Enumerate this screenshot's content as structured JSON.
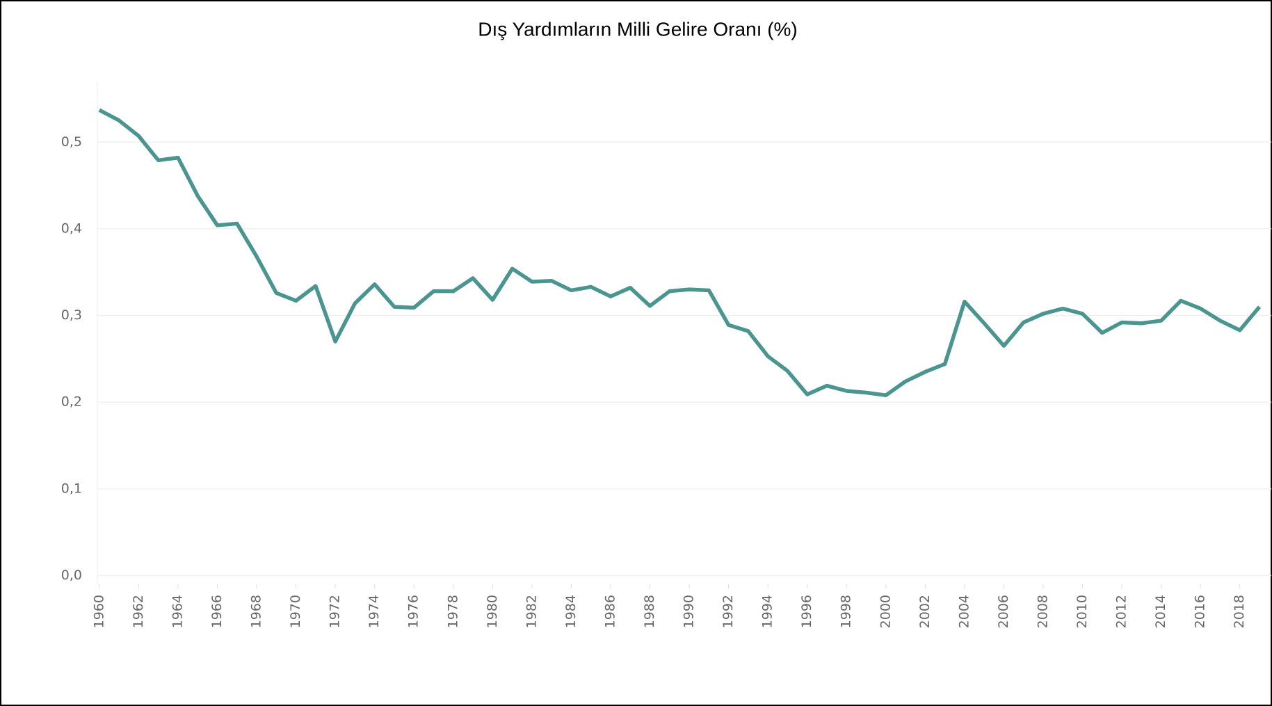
{
  "chart_data": {
    "type": "line",
    "title": "Dış Yardımların Milli Gelire Oranı (%)",
    "x": [
      1960,
      1961,
      1962,
      1963,
      1964,
      1965,
      1966,
      1967,
      1968,
      1969,
      1970,
      1971,
      1972,
      1973,
      1974,
      1975,
      1976,
      1977,
      1978,
      1979,
      1980,
      1981,
      1982,
      1983,
      1984,
      1985,
      1986,
      1987,
      1988,
      1989,
      1990,
      1991,
      1992,
      1993,
      1994,
      1995,
      1996,
      1997,
      1998,
      1999,
      2000,
      2001,
      2002,
      2003,
      2004,
      2005,
      2006,
      2007,
      2008,
      2009,
      2010,
      2011,
      2012,
      2013,
      2014,
      2015,
      2016,
      2017,
      2018,
      2019
    ],
    "series": [
      {
        "name": "Dış Yardımların Milli Gelire Oranı (%)",
        "color": "#4a958f",
        "values": [
          0.537,
          0.525,
          0.507,
          0.479,
          0.482,
          0.438,
          0.404,
          0.406,
          0.368,
          0.326,
          0.317,
          0.334,
          0.27,
          0.314,
          0.336,
          0.31,
          0.309,
          0.328,
          0.328,
          0.343,
          0.318,
          0.354,
          0.339,
          0.34,
          0.329,
          0.333,
          0.322,
          0.332,
          0.311,
          0.328,
          0.33,
          0.329,
          0.289,
          0.282,
          0.253,
          0.236,
          0.209,
          0.219,
          0.213,
          0.211,
          0.208,
          0.224,
          0.235,
          0.244,
          0.316,
          0.291,
          0.265,
          0.292,
          0.302,
          0.308,
          0.302,
          0.28,
          0.292,
          0.291,
          0.294,
          0.317,
          0.308,
          0.294,
          0.283,
          0.31
        ]
      }
    ],
    "xlim": [
      1959.9,
      2019
    ],
    "xticks": [
      1960,
      1962,
      1964,
      1966,
      1968,
      1970,
      1972,
      1974,
      1976,
      1978,
      1980,
      1982,
      1984,
      1986,
      1988,
      1990,
      1992,
      1994,
      1996,
      1998,
      2000,
      2002,
      2004,
      2006,
      2008,
      2010,
      2012,
      2014,
      2016,
      2018
    ],
    "ylim": [
      -0.01,
      0.57
    ],
    "yticks": [
      {
        "value": 0,
        "label": "0,0"
      },
      {
        "value": 0.1,
        "label": "0,1"
      },
      {
        "value": 0.2,
        "label": "0,2"
      },
      {
        "value": 0.3,
        "label": "0,3"
      },
      {
        "value": 0.4,
        "label": "0,4"
      },
      {
        "value": 0.5,
        "label": "0,5"
      }
    ],
    "grid": true
  }
}
